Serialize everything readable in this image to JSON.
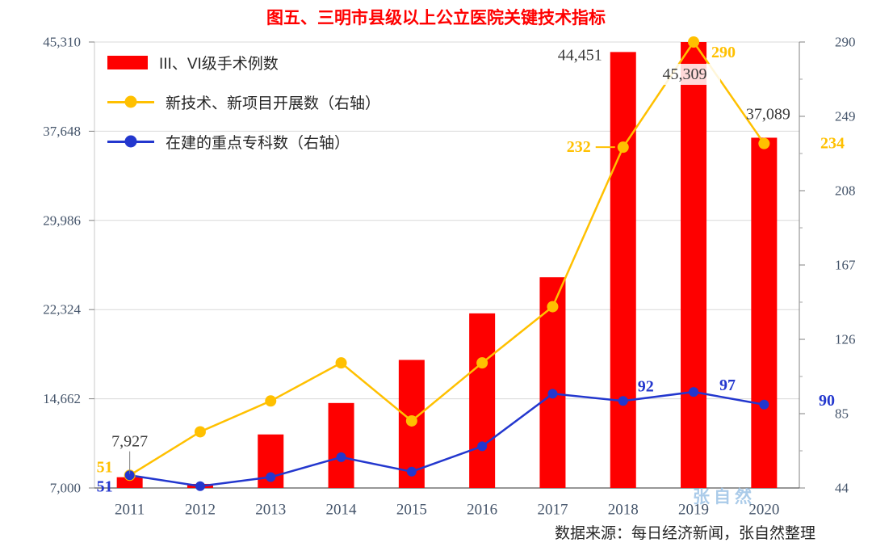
{
  "chart_data": {
    "type": "composite",
    "title": "图五、三明市县级以上公立医院关键技术指标",
    "title_color": "#FF0000",
    "categories": [
      "2011",
      "2012",
      "2013",
      "2014",
      "2015",
      "2016",
      "2017",
      "2018",
      "2019",
      "2020"
    ],
    "series": [
      {
        "name": "III、VI级手术例数",
        "type": "bar",
        "axis": "left",
        "color": "#FE0000",
        "values": [
          7927,
          7350,
          11600,
          14300,
          18000,
          22000,
          25100,
          44451,
          45309,
          37089
        ]
      },
      {
        "name": "新技术、新项目开展数（右轴）",
        "type": "line",
        "axis": "right",
        "color": "#FFC000",
        "values": [
          51,
          75,
          92,
          113,
          81,
          113,
          144,
          232,
          290,
          234
        ]
      },
      {
        "name": "在建的重点专科数（右轴）",
        "type": "line",
        "axis": "right",
        "color": "#2337CE",
        "values": [
          51,
          45,
          50,
          61,
          53,
          67,
          96,
          92,
          97,
          90
        ]
      }
    ],
    "left_axis": {
      "min": 7000,
      "max": 45310,
      "ticks": [
        7000,
        14662,
        22324,
        29986,
        37648,
        45310
      ],
      "labels": [
        "7,000",
        "14,662",
        "22,324",
        "29,986",
        "37,648",
        "45,310"
      ]
    },
    "right_axis": {
      "min": 44,
      "max": 290,
      "ticks": [
        44,
        85,
        126,
        167,
        208,
        249,
        290
      ],
      "labels": [
        "44",
        "85",
        "126",
        "167",
        "208",
        "249",
        "290"
      ]
    },
    "data_labels": [
      {
        "series": 0,
        "index": 0,
        "text": "7,927"
      },
      {
        "series": 1,
        "index": 0,
        "text": "51"
      },
      {
        "series": 2,
        "index": 0,
        "text": "51"
      },
      {
        "series": 1,
        "index": 7,
        "text": "232"
      },
      {
        "series": 0,
        "index": 7,
        "text": "44,451"
      },
      {
        "series": 0,
        "index": 8,
        "text": "45,309"
      },
      {
        "series": 1,
        "index": 8,
        "text": "290"
      },
      {
        "series": 0,
        "index": 9,
        "text": "37,089"
      },
      {
        "series": 1,
        "index": 9,
        "text": "234"
      },
      {
        "series": 2,
        "index": 7,
        "text": "92"
      },
      {
        "series": 2,
        "index": 8,
        "text": "97"
      },
      {
        "series": 2,
        "index": 9,
        "text": "90"
      }
    ],
    "dark_label_color": "#3B3B3B",
    "axis_text_color": "#44546A",
    "grid": true,
    "legend_position": "top-left-inside",
    "source": "数据来源：每日经济新闻，张自然整理",
    "watermark": "张自然",
    "watermark_color": "#9DC3E6"
  }
}
